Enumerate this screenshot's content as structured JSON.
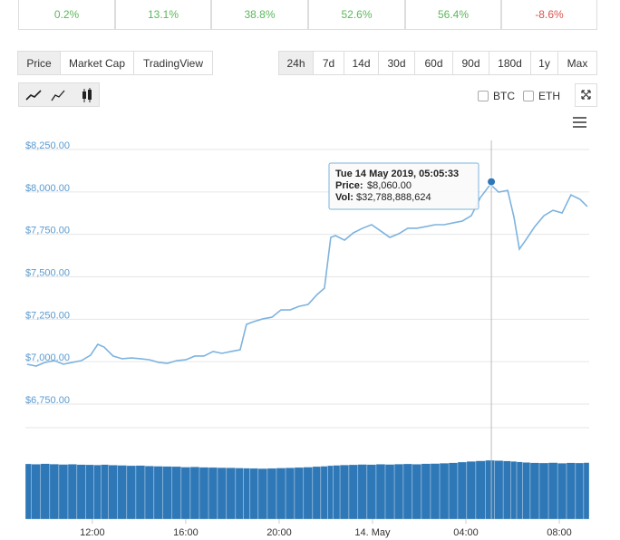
{
  "stats": [
    {
      "text": "0.2%",
      "color": "#5cb85c"
    },
    {
      "text": "13.1%",
      "color": "#5cb85c"
    },
    {
      "text": "38.8%",
      "color": "#5cb85c"
    },
    {
      "text": "52.6%",
      "color": "#5cb85c"
    },
    {
      "text": "56.4%",
      "color": "#5cb85c"
    },
    {
      "text": "-8.6%",
      "color": "#d9534f"
    }
  ],
  "chart_tabs": [
    "Price",
    "Market Cap",
    "TradingView"
  ],
  "ranges": [
    "24h",
    "7d",
    "14d",
    "30d",
    "60d",
    "90d",
    "180d",
    "1y",
    "Max"
  ],
  "compare": [
    "BTC",
    "ETH"
  ],
  "chart_data": {
    "type": "line",
    "x": [
      9.2,
      9.59,
      9.98,
      10.37,
      10.76,
      11.15,
      11.53,
      11.92,
      12.23,
      12.5,
      12.89,
      13.28,
      13.67,
      14.06,
      14.45,
      14.83,
      15.22,
      15.61,
      16,
      16.39,
      16.78,
      17.17,
      17.55,
      17.94,
      18.33,
      18.6,
      18.91,
      19.3,
      19.69,
      20.08,
      20.47,
      20.85,
      21.24,
      21.63,
      21.94,
      22.21,
      22.41,
      22.8,
      23.18,
      23.57,
      23.96,
      24.35,
      24.74,
      25.13,
      25.51,
      25.9,
      26.29,
      26.68,
      27.07,
      27.46,
      27.84,
      28.23,
      28.62,
      29.05,
      29.4,
      29.79,
      30.06,
      30.29,
      30.56,
      30.95,
      31.34,
      31.73,
      32.12,
      32.5,
      32.89,
      33.2
    ],
    "series": [
      {
        "color": "#7db3df",
        "values": [
          6985,
          6974,
          6996,
          7006,
          6985,
          6996,
          7006,
          7038,
          7102,
          7086,
          7033,
          7017,
          7022,
          7017,
          7011,
          6996,
          6990,
          7006,
          7011,
          7033,
          7033,
          7060,
          7049,
          7060,
          7070,
          7220,
          7236,
          7252,
          7262,
          7305,
          7305,
          7326,
          7337,
          7396,
          7433,
          7732,
          7743,
          7716,
          7759,
          7786,
          7807,
          7770,
          7732,
          7754,
          7786,
          7786,
          7796,
          7807,
          7807,
          7818,
          7828,
          7860,
          7967,
          8045,
          7999,
          8009,
          7850,
          7663,
          7716,
          7796,
          7860,
          7892,
          7876,
          7983,
          7956,
          7914
        ]
      }
    ],
    "volume": {
      "color": "#2f78b7",
      "values": [
        30800000000,
        30600000000,
        30900000000,
        30700000000,
        30500000000,
        30600000000,
        30400000000,
        30300000000,
        30200000000,
        30400000000,
        30100000000,
        30000000000,
        29800000000,
        29900000000,
        29600000000,
        29500000000,
        29400000000,
        29300000000,
        29000000000,
        29100000000,
        28900000000,
        28800000000,
        28700000000,
        28600000000,
        28500000000,
        28400000000,
        28300000000,
        28200000000,
        28300000000,
        28500000000,
        28600000000,
        28800000000,
        29000000000,
        29300000000,
        29500000000,
        29800000000,
        30000000000,
        30200000000,
        30300000000,
        30500000000,
        30400000000,
        30600000000,
        30500000000,
        30700000000,
        30800000000,
        30600000000,
        30900000000,
        31000000000,
        31200000000,
        31400000000,
        31800000000,
        32200000000,
        32500000000,
        32800000000,
        32600000000,
        32400000000,
        32200000000,
        31900000000,
        31600000000,
        31400000000,
        31300000000,
        31500000000,
        31200000000,
        31400000000,
        31300000000,
        31500000000
      ]
    },
    "xlim": [
      9.13,
      33.28
    ],
    "xticks": [
      {
        "value": 12,
        "label": "12:00"
      },
      {
        "value": 16,
        "label": "16:00"
      },
      {
        "value": 20,
        "label": "20:00"
      },
      {
        "value": 24,
        "label": "14. May"
      },
      {
        "value": 28,
        "label": "04:00"
      },
      {
        "value": 32,
        "label": "08:00"
      }
    ],
    "ylim": [
      6750,
      8250
    ],
    "yticks": [
      {
        "value": 6750,
        "label": "$6,750.00"
      },
      {
        "value": 7000,
        "label": "$7,000.00"
      },
      {
        "value": 7250,
        "label": "$7,250.00"
      },
      {
        "value": 7500,
        "label": "$7,500.00"
      },
      {
        "value": 7750,
        "label": "$7,750.00"
      },
      {
        "value": 8000,
        "label": "$8,000.00"
      },
      {
        "value": 8250,
        "label": "$8,250.00"
      }
    ],
    "grid": true,
    "highlight": {
      "x": 29.09,
      "value": 8060,
      "title": "Tue 14 May 2019, 05:05:33",
      "price_label": "Price:",
      "value_label": "$8,060.00",
      "volume_label_name": "Vol:",
      "volume_label": "$32,788,888,624"
    }
  }
}
